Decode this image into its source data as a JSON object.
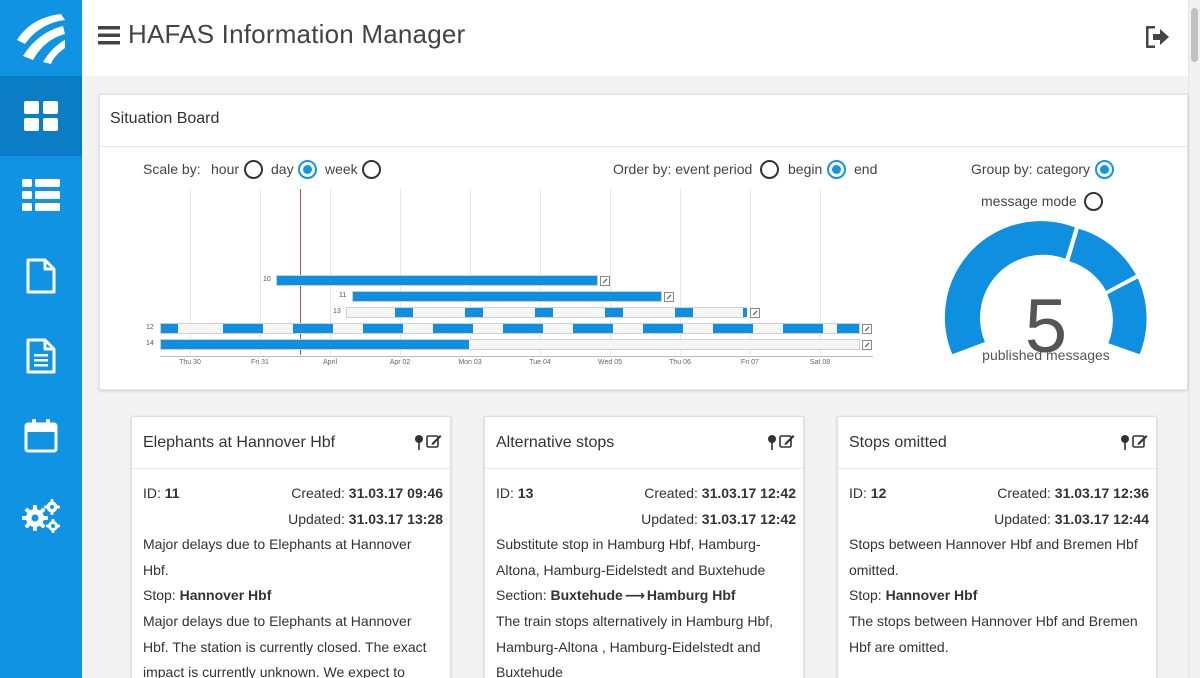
{
  "app": {
    "title": "HAFAS Information Manager"
  },
  "sidebar": {
    "items": [
      {
        "icon": "dashboard-icon",
        "active": true
      },
      {
        "icon": "list-icon",
        "active": false
      },
      {
        "icon": "document-icon",
        "active": false
      },
      {
        "icon": "text-document-icon",
        "active": false
      },
      {
        "icon": "calendar-icon",
        "active": false
      },
      {
        "icon": "settings-icon",
        "active": false
      }
    ]
  },
  "situation_board": {
    "title": "Situation Board",
    "scale": {
      "label": "Scale by:",
      "options": [
        "hour",
        "day",
        "week"
      ],
      "selected": "day"
    },
    "order": {
      "label": "Order by: event period",
      "options": [
        "begin",
        "end"
      ],
      "selected": "end"
    },
    "group": {
      "label": "Group by: category",
      "message_mode_label": "message mode",
      "selected": "category"
    },
    "timeline": {
      "tick_labels": [
        "Thu 30",
        "Fri 31",
        "April",
        "Apr 02",
        "Mon 03",
        "Tue 04",
        "Wed 05",
        "Thu 06",
        "Fri 07",
        "Sat 08"
      ],
      "rows": [
        "10",
        "11",
        "13",
        "12",
        "14"
      ]
    },
    "gauge": {
      "value": "5",
      "label": "published messages"
    }
  },
  "messages": [
    {
      "title": "Elephants at Hannover Hbf",
      "id_label": "ID:",
      "id": "11",
      "created_label": "Created:",
      "created": "31.03.17 09:46",
      "updated_label": "Updated:",
      "updated": "31.03.17 13:28",
      "summary_line1": "Major delays due to Elephants at Hannover",
      "summary_line2": "Hbf.",
      "location_label": "Stop:",
      "location": "Hannover Hbf",
      "detail_line1": "Major delays due to Elephants at Hannover",
      "detail_line2": "Hbf. The station is currently closed. The exact",
      "detail_line3": "impact is currently unknown. We expect to"
    },
    {
      "title": "Alternative stops",
      "id_label": "ID:",
      "id": "13",
      "created_label": "Created:",
      "created": "31.03.17 12:42",
      "updated_label": "Updated:",
      "updated": "31.03.17 12:42",
      "summary_line1": "Substitute stop in Hamburg Hbf, Hamburg-",
      "summary_line2": "Altona, Hamburg-Eidelstedt and Buxtehude",
      "location_label": "Section:",
      "section_from": "Buxtehude",
      "section_arrow": "⟶",
      "section_to": "Hamburg Hbf",
      "detail_line1": "The train stops alternatively in Hamburg Hbf,",
      "detail_line2": "Hamburg-Altona , Hamburg-Eidelstedt and",
      "detail_line3": "Buxtehude"
    },
    {
      "title": "Stops omitted",
      "id_label": "ID:",
      "id": "12",
      "created_label": "Created:",
      "created": "31.03.17 12:36",
      "updated_label": "Updated:",
      "updated": "31.03.17 12:44",
      "summary_line1": "Stops between Hannover Hbf and Bremen Hbf",
      "summary_line2": "omitted.",
      "location_label": "Stop:",
      "location": "Hannover Hbf",
      "detail_line1": "The stops between Hannover Hbf and Bremen",
      "detail_line2": "Hbf are omitted."
    }
  ],
  "colors": {
    "brand": "#0f93e2",
    "accent": "#1196e0",
    "sidebar_active": "#0a7dc4"
  }
}
